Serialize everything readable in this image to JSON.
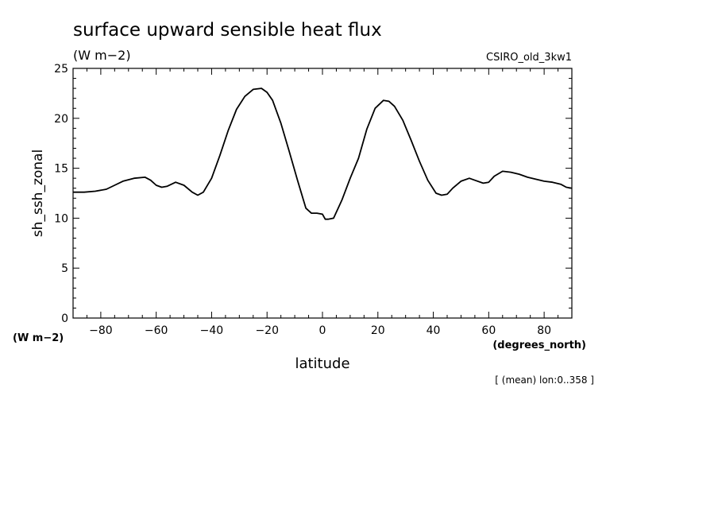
{
  "chart_data": {
    "type": "line",
    "title": "surface upward sensible heat flux",
    "units": "(W m−2)",
    "model_label": "CSIRO_old_3kw1",
    "ylabel": "sh_ssh_zonal",
    "y_units": "(W m−2)",
    "xlabel": "latitude",
    "x_units": "(degrees_north)",
    "footnote": "[ (mean) lon:0..358 ]",
    "xlim": [
      -90,
      90
    ],
    "ylim": [
      0,
      25
    ],
    "x_ticks": [
      -80,
      -60,
      -40,
      -20,
      0,
      20,
      40,
      60,
      80
    ],
    "x_tick_labels": [
      "−80",
      "−60",
      "−40",
      "−20",
      "0",
      "20",
      "40",
      "60",
      "80"
    ],
    "y_ticks": [
      0,
      5,
      10,
      15,
      20,
      25
    ],
    "y_tick_labels": [
      "0",
      "5",
      "10",
      "15",
      "20",
      "25"
    ],
    "grid": false,
    "legend": "none",
    "series": [
      {
        "color": "#000000",
        "x": [
          -90,
          -86,
          -82,
          -78,
          -75,
          -72,
          -68,
          -64,
          -62,
          -60,
          -58,
          -56,
          -53,
          -50,
          -47,
          -45,
          -43,
          -40,
          -37,
          -34,
          -31,
          -28,
          -25,
          -22,
          -20,
          -18,
          -15,
          -12,
          -9,
          -6,
          -4,
          -2,
          0,
          1,
          2,
          4,
          7,
          10,
          13,
          16,
          19,
          22,
          24,
          26,
          29,
          32,
          35,
          38,
          41,
          43,
          45,
          47,
          50,
          53,
          55,
          58,
          60,
          62,
          65,
          68,
          71,
          74,
          77,
          80,
          83,
          86,
          88,
          90
        ],
        "y": [
          12.6,
          12.6,
          12.7,
          12.9,
          13.3,
          13.7,
          14.0,
          14.1,
          13.8,
          13.3,
          13.1,
          13.2,
          13.6,
          13.3,
          12.6,
          12.3,
          12.6,
          14.0,
          16.3,
          18.8,
          20.9,
          22.2,
          22.9,
          23.0,
          22.6,
          21.8,
          19.5,
          16.7,
          13.8,
          11.0,
          10.5,
          10.5,
          10.4,
          9.9,
          9.9,
          10.0,
          11.8,
          14.0,
          16.0,
          18.9,
          21.0,
          21.8,
          21.7,
          21.2,
          19.8,
          17.8,
          15.7,
          13.8,
          12.5,
          12.3,
          12.4,
          13.0,
          13.7,
          14.0,
          13.8,
          13.5,
          13.6,
          14.2,
          14.7,
          14.6,
          14.4,
          14.1,
          13.9,
          13.7,
          13.6,
          13.4,
          13.1,
          13.0
        ]
      }
    ]
  }
}
